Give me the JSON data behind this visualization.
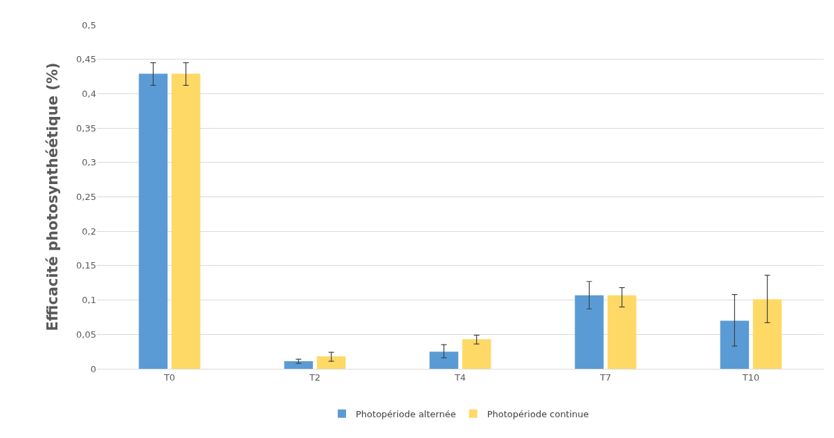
{
  "chart_data": {
    "type": "bar",
    "ylabel": "Efficacité photosynthéétique (%)",
    "categories": [
      "T0",
      "T2",
      "T4",
      "T7",
      "T10"
    ],
    "series": [
      {
        "name": "Photopériode alternée",
        "color": "#5b9bd5",
        "values": [
          0.429,
          0.011,
          0.025,
          0.107,
          0.07
        ],
        "errors": [
          [
            0.412,
            0.445
          ],
          [
            0.008,
            0.014
          ],
          [
            0.016,
            0.035
          ],
          [
            0.087,
            0.127
          ],
          [
            0.033,
            0.108
          ]
        ]
      },
      {
        "name": "Photopériode continue",
        "color": "#ffd966",
        "values": [
          0.429,
          0.018,
          0.043,
          0.107,
          0.101
        ],
        "errors": [
          [
            0.412,
            0.445
          ],
          [
            0.011,
            0.024
          ],
          [
            0.036,
            0.049
          ],
          [
            0.09,
            0.118
          ],
          [
            0.067,
            0.136
          ]
        ]
      }
    ],
    "ylim": [
      0,
      0.5
    ],
    "yticks": [
      {
        "value": 0,
        "label": "0"
      },
      {
        "value": 0.05,
        "label": "0,05"
      },
      {
        "value": 0.1,
        "label": "0,1"
      },
      {
        "value": 0.15,
        "label": "0,15"
      },
      {
        "value": 0.2,
        "label": "0,2"
      },
      {
        "value": 0.25,
        "label": "0,25"
      },
      {
        "value": 0.3,
        "label": "0,3"
      },
      {
        "value": 0.35,
        "label": "0,35"
      },
      {
        "value": 0.4,
        "label": "0,4"
      },
      {
        "value": 0.45,
        "label": "0,45"
      },
      {
        "value": 0.5,
        "label": "0,5"
      }
    ],
    "grid": "y",
    "legend": "bottom"
  }
}
